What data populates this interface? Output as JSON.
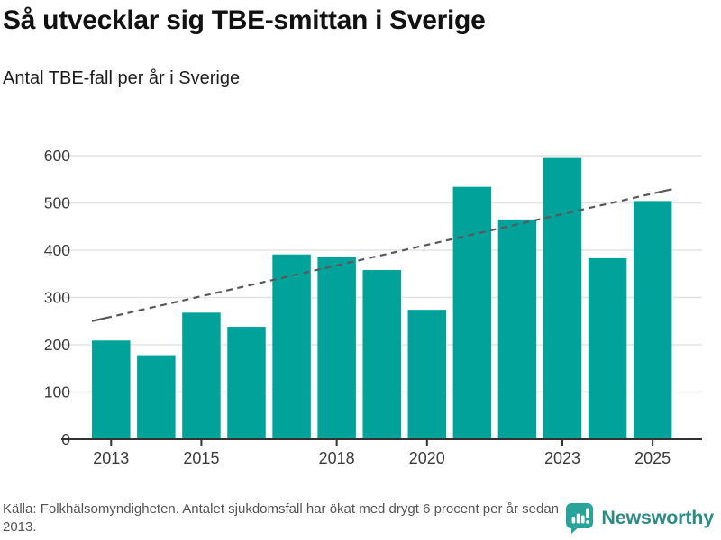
{
  "header": {
    "title": "Så utvecklar sig TBE-smittan i Sverige",
    "subtitle": "Antal TBE-fall per år i Sverige"
  },
  "chart_data": {
    "type": "bar",
    "title": "Antal TBE-fall per år i Sverige",
    "categories": [
      2013,
      2014,
      2015,
      2016,
      2017,
      2018,
      2019,
      2020,
      2021,
      2022,
      2023,
      2024,
      2025
    ],
    "values": [
      209,
      178,
      268,
      238,
      391,
      385,
      358,
      274,
      534,
      465,
      595,
      383,
      504
    ],
    "ylim": [
      0,
      600
    ],
    "yticks": [
      0,
      100,
      200,
      300,
      400,
      500,
      600
    ],
    "xticks_shown": [
      2013,
      2015,
      2018,
      2020,
      2023,
      2025
    ],
    "grid": "horizontal",
    "legend": "none",
    "bar_color": "#00a29a",
    "grid_color": "#e3e3e3",
    "axis_color": "#333333",
    "tick_label_color": "#3c3c3c",
    "trend_line": {
      "style": "dashed",
      "color": "#595959",
      "start": {
        "year": 2013,
        "value": 250
      },
      "end": {
        "year": 2025,
        "value": 529
      }
    }
  },
  "footer": {
    "source_text": "Källa: Folkhälsomyndigheten. Antalet sjukdomsfall har ökat med drygt 6 procent per år sedan 2013.",
    "brand": "Newsworthy",
    "brand_icon": "bar-chart-speech-bubble",
    "brand_color": "#2d8b85",
    "brand_icon_color": "#2aa39a"
  }
}
